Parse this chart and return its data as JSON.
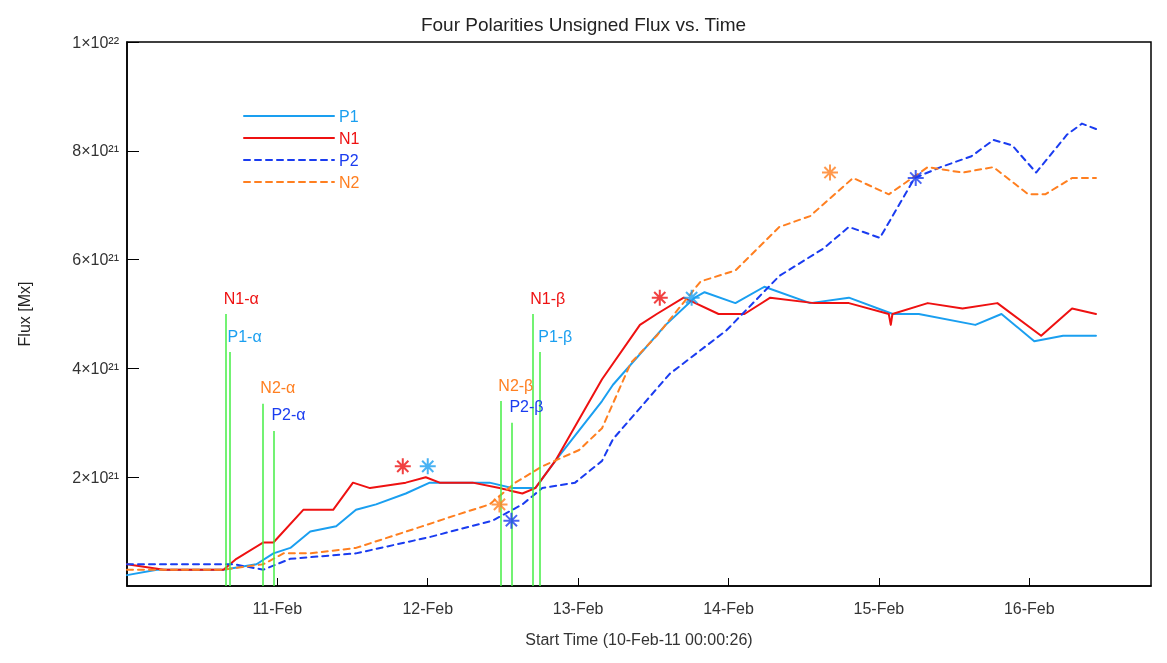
{
  "chart_data": {
    "type": "line",
    "title": "Four Polarities Unsigned Flux vs. Time",
    "xlabel": "Start Time (10-Feb-11 00:00:26)",
    "ylabel": "Flux [Mx]",
    "xlim": [
      "--02-10T00:00",
      "--02-16T19:26"
    ],
    "xticks": [
      {
        "value": "--02-11",
        "label": "11-Feb"
      },
      {
        "value": "--02-12",
        "label": "12-Feb"
      },
      {
        "value": "--02-13",
        "label": "13-Feb"
      },
      {
        "value": "--02-14",
        "label": "14-Feb"
      },
      {
        "value": "--02-15",
        "label": "15-Feb"
      },
      {
        "value": "--02-16",
        "label": "16-Feb"
      }
    ],
    "ylim": [
      0,
      1e+22
    ],
    "yticks": [
      {
        "value": 2e+21,
        "label": "2×10²¹"
      },
      {
        "value": 4e+21,
        "label": "4×10²¹"
      },
      {
        "value": 6e+21,
        "label": "6×10²¹"
      },
      {
        "value": 8e+21,
        "label": "8×10²¹"
      },
      {
        "value": 1e+22,
        "label": "1×10²²"
      }
    ],
    "grid": false,
    "legend": "top left",
    "marker": "none",
    "series": [
      {
        "name": "P1",
        "color": "#1a9ff0",
        "line_style": "solid",
        "x": [
          "--02-10T00:00",
          "--02-10T04:46",
          "--02-10T15:24",
          "--02-10T20:40",
          "--02-10T23:22",
          "--02-11T02:04",
          "--02-11T05:15",
          "--02-11T09:23",
          "--02-11T12:33",
          "--02-11T15:45",
          "--02-11T20:30",
          "--02-12T00:19",
          "--02-12T03:30",
          "--02-12T09:52",
          "--02-12T13:31",
          "--02-12T17:10",
          "--02-12T20:21",
          "--02-13T03:49",
          "--02-13T05:34",
          "--02-13T13:59",
          "--02-13T18:36",
          "--02-13T20:11",
          "--02-14T01:06",
          "--02-14T05:43",
          "--02-14T13:02",
          "--02-14T19:13",
          "--02-15T02:14",
          "--02-15T06:22",
          "--02-15T15:24",
          "--02-15T19:34",
          "--02-16T00:48",
          "--02-16T05:24",
          "--02-16T10:39"
        ],
        "values": [
          2e+20,
          3e+20,
          3e+20,
          4e+20,
          6e+20,
          7e+20,
          1e+21,
          1.1e+21,
          1.4e+21,
          1.5e+21,
          1.7e+21,
          1.9e+21,
          1.9e+21,
          1.9e+21,
          1.8e+21,
          1.8e+21,
          2.3e+21,
          3.4e+21,
          3.7e+21,
          4.8e+21,
          5.3e+21,
          5.4e+21,
          5.2e+21,
          5.5e+21,
          5.2e+21,
          5.3e+21,
          5e+21,
          5e+21,
          4.8e+21,
          5e+21,
          4.5e+21,
          4.6e+21,
          4.6e+21
        ]
      },
      {
        "name": "N1",
        "color": "#ee1111",
        "line_style": "solid",
        "x": [
          "--02-10T00:00",
          "--02-10T05:53",
          "--02-10T15:24",
          "--02-10T17:28",
          "--02-10T21:46",
          "--02-10T23:22",
          "--02-11T04:08",
          "--02-11T08:54",
          "--02-11T12:04",
          "--02-11T14:47",
          "--02-11T20:30",
          "--02-11T23:41",
          "--02-12T01:54",
          "--02-12T07:09",
          "--02-12T11:27",
          "--02-12T15:06",
          "--02-12T17:10",
          "--02-12T20:21",
          "--02-13T03:49",
          "--02-13T09:52",
          "--02-13T12:33",
          "--02-13T16:51",
          "--02-13T22:25",
          "--02-14T02:33",
          "--02-14T06:40",
          "--02-14T13:41",
          "--02-14T19:13",
          "--02-15T01:35",
          "--02-15T01:54",
          "--02-15T02:10",
          "--02-15T07:48",
          "--02-15T13:21",
          "--02-15T18:55",
          "--02-16T01:54",
          "--02-16T06:50",
          "--02-16T10:39"
        ],
        "values": [
          4e+20,
          3e+20,
          3e+20,
          5e+20,
          8e+20,
          8e+20,
          1.4e+21,
          1.4e+21,
          1.9e+21,
          1.8e+21,
          1.9e+21,
          2e+21,
          1.9e+21,
          1.9e+21,
          1.8e+21,
          1.7e+21,
          1.8e+21,
          2.3e+21,
          3.8e+21,
          4.8e+21,
          5e+21,
          5.3e+21,
          5e+21,
          5e+21,
          5.3e+21,
          5.2e+21,
          5.2e+21,
          5e+21,
          4.8e+21,
          5e+21,
          5.2e+21,
          5.1e+21,
          5.2e+21,
          4.6e+21,
          5.1e+21,
          5e+21
        ]
      },
      {
        "name": "P2",
        "color": "#1a3cf0",
        "line_style": "dashed",
        "x": [
          "--02-10T00:00",
          "--02-10T12:43",
          "--02-10T17:01",
          "--02-10T21:46",
          "--02-11T02:04",
          "--02-11T12:33",
          "--02-12T00:19",
          "--02-12T10:19",
          "--02-12T15:06",
          "--02-12T18:17",
          "--02-12T23:31",
          "--02-13T03:49",
          "--02-13T05:34",
          "--02-13T14:37",
          "--02-13T23:41",
          "--02-14T08:07",
          "--02-14T15:06",
          "--02-14T19:13",
          "--02-15T00:10",
          "--02-15T05:43",
          "--02-15T09:52",
          "--02-15T14:47",
          "--02-15T18:17",
          "--02-15T21:17",
          "--02-16T01:06",
          "--02-16T06:03",
          "--02-16T08:25",
          "--02-16T10:39"
        ],
        "values": [
          4e+20,
          4e+20,
          4e+20,
          3e+20,
          5e+20,
          6e+20,
          9e+20,
          1.2e+21,
          1.5e+21,
          1.8e+21,
          1.9e+21,
          2.3e+21,
          2.7e+21,
          3.9e+21,
          4.7e+21,
          5.7e+21,
          6.2e+21,
          6.6e+21,
          6.4e+21,
          7.5e+21,
          7.7e+21,
          7.9e+21,
          8.2e+21,
          8.1e+21,
          7.6e+21,
          8.3e+21,
          8.5e+21,
          8.4e+21
        ]
      },
      {
        "name": "N2",
        "color": "#ff7f20",
        "line_style": "dashed",
        "x": [
          "--02-10T00:00",
          "--02-10T10:11",
          "--02-10T15:24",
          "--02-10T21:46",
          "--02-11T00:58",
          "--02-11T05:15",
          "--02-11T12:33",
          "--02-11T23:12",
          "--02-12T04:26",
          "--02-12T09:52",
          "--02-12T13:59",
          "--02-12T18:17",
          "--02-13T00:10",
          "--02-13T03:49",
          "--02-13T08:25",
          "--02-13T12:33",
          "--02-13T19:34",
          "--02-14T01:06",
          "--02-14T08:07",
          "--02-14T13:02",
          "--02-14T19:52",
          "--02-15T01:35",
          "--02-15T07:48",
          "--02-15T13:21",
          "--02-15T18:17",
          "--02-15T23:50",
          "--02-16T02:33",
          "--02-16T06:50",
          "--02-16T10:39"
        ],
        "values": [
          3e+20,
          3e+20,
          3e+20,
          4e+20,
          6e+20,
          6e+20,
          7e+20,
          1.1e+21,
          1.3e+21,
          1.5e+21,
          1.9e+21,
          2.2e+21,
          2.5e+21,
          2.9e+21,
          4.1e+21,
          4.6e+21,
          5.6e+21,
          5.8e+21,
          6.6e+21,
          6.8e+21,
          7.5e+21,
          7.2e+21,
          7.7e+21,
          7.6e+21,
          7.7e+21,
          7.2e+21,
          7.2e+21,
          7.5e+21,
          7.5e+21
        ]
      },
      {
        "type": "scatter",
        "marker": "cross",
        "color": "#ee1111",
        "x": [
          "--02-11T20:01",
          "--02-13T13:02"
        ],
        "values": [
          2.2e+21,
          5.3e+21
        ]
      },
      {
        "type": "scatter",
        "marker": "cross",
        "color": "#1a9ff0",
        "x": [
          "--02-12T00:00",
          "--02-13T18:07"
        ],
        "values": [
          2.2e+21,
          5.3e+21
        ]
      },
      {
        "type": "scatter",
        "marker": "cross",
        "color": "#ff7f20",
        "x": [
          "--02-12T11:27",
          "--02-14T16:12"
        ],
        "values": [
          1.5e+21,
          7.6e+21
        ]
      },
      {
        "type": "scatter",
        "marker": "cross",
        "color": "#1a3cf0",
        "x": [
          "--02-12T13:21",
          "--02-15T05:53"
        ],
        "values": [
          1.2e+21,
          7.5e+21
        ]
      }
    ],
    "ref_lines": [
      {
        "axis": "x",
        "value": "--02-10T15:45",
        "label": "N1-α",
        "color": "#44ee44"
      },
      {
        "axis": "x",
        "value": "--02-10T16:22",
        "label": "P1-α",
        "color": "#44ee44"
      },
      {
        "axis": "x",
        "value": "--02-10T21:36",
        "label": "N2-α",
        "color": "#44ee44"
      },
      {
        "axis": "x",
        "value": "--02-10T23:22",
        "label": "P2-α",
        "color": "#44ee44"
      },
      {
        "axis": "x",
        "value": "--02-12T11:35",
        "label": "N2-β",
        "color": "#44ee44"
      },
      {
        "axis": "x",
        "value": "--02-12T13:21",
        "label": "P2-β",
        "color": "#44ee44"
      },
      {
        "axis": "x",
        "value": "--02-12T16:41",
        "label": "N1-β",
        "color": "#44ee44"
      },
      {
        "axis": "x",
        "value": "--02-12T17:57",
        "label": "P1-β",
        "color": "#44ee44"
      }
    ]
  }
}
